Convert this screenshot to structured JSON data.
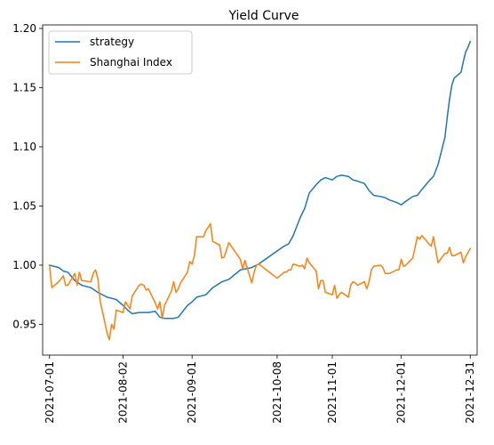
{
  "chart_data": {
    "type": "line",
    "title": "Yield Curve",
    "xlabel": "",
    "ylabel": "",
    "x_range": [
      "2021-06-28",
      "2022-01-03"
    ],
    "ylim": [
      0.924,
      1.203
    ],
    "y_ticks": [
      {
        "value": 0.95,
        "label": "0.95"
      },
      {
        "value": 1.0,
        "label": "1.00"
      },
      {
        "value": 1.05,
        "label": "1.05"
      },
      {
        "value": 1.1,
        "label": "1.10"
      },
      {
        "value": 1.15,
        "label": "1.15"
      },
      {
        "value": 1.2,
        "label": "1.20"
      }
    ],
    "x_ticks": [
      {
        "date": "2021-07-01",
        "label": "2021-07-01"
      },
      {
        "date": "2021-08-02",
        "label": "2021-08-02"
      },
      {
        "date": "2021-09-01",
        "label": "2021-09-01"
      },
      {
        "date": "2021-10-08",
        "label": "2021-10-08"
      },
      {
        "date": "2021-11-01",
        "label": "2021-11-01"
      },
      {
        "date": "2021-12-01",
        "label": "2021-12-01"
      },
      {
        "date": "2021-12-31",
        "label": "2021-12-31"
      }
    ],
    "grid": false,
    "legend_position": "top-left",
    "series": [
      {
        "name": "strategy",
        "color": "#1f77b4",
        "points": [
          [
            "2021-07-01",
            1.0
          ],
          [
            "2021-07-05",
            0.998
          ],
          [
            "2021-07-07",
            0.995
          ],
          [
            "2021-07-09",
            0.994
          ],
          [
            "2021-07-12",
            0.987
          ],
          [
            "2021-07-15",
            0.983
          ],
          [
            "2021-07-19",
            0.981
          ],
          [
            "2021-07-22",
            0.977
          ],
          [
            "2021-07-26",
            0.973
          ],
          [
            "2021-07-30",
            0.971
          ],
          [
            "2021-08-02",
            0.966
          ],
          [
            "2021-08-04",
            0.962
          ],
          [
            "2021-08-06",
            0.959
          ],
          [
            "2021-08-09",
            0.96
          ],
          [
            "2021-08-13",
            0.96
          ],
          [
            "2021-08-16",
            0.961
          ],
          [
            "2021-08-18",
            0.956
          ],
          [
            "2021-08-20",
            0.955
          ],
          [
            "2021-08-24",
            0.955
          ],
          [
            "2021-08-26",
            0.956
          ],
          [
            "2021-08-30",
            0.966
          ],
          [
            "2021-09-01",
            0.969
          ],
          [
            "2021-09-03",
            0.973
          ],
          [
            "2021-09-07",
            0.975
          ],
          [
            "2021-09-10",
            0.981
          ],
          [
            "2021-09-14",
            0.986
          ],
          [
            "2021-09-17",
            0.988
          ],
          [
            "2021-09-22",
            0.996
          ],
          [
            "2021-09-27",
            0.998
          ],
          [
            "2021-09-30",
            1.001
          ],
          [
            "2021-10-08",
            1.012
          ],
          [
            "2021-10-11",
            1.016
          ],
          [
            "2021-10-13",
            1.018
          ],
          [
            "2021-10-15",
            1.025
          ],
          [
            "2021-10-18",
            1.04
          ],
          [
            "2021-10-20",
            1.048
          ],
          [
            "2021-10-22",
            1.061
          ],
          [
            "2021-10-25",
            1.068
          ],
          [
            "2021-10-27",
            1.072
          ],
          [
            "2021-10-29",
            1.074
          ],
          [
            "2021-11-01",
            1.072
          ],
          [
            "2021-11-03",
            1.075
          ],
          [
            "2021-11-05",
            1.076
          ],
          [
            "2021-11-08",
            1.075
          ],
          [
            "2021-11-10",
            1.072
          ],
          [
            "2021-11-12",
            1.071
          ],
          [
            "2021-11-15",
            1.069
          ],
          [
            "2021-11-17",
            1.063
          ],
          [
            "2021-11-19",
            1.059
          ],
          [
            "2021-11-22",
            1.058
          ],
          [
            "2021-11-24",
            1.057
          ],
          [
            "2021-11-26",
            1.055
          ],
          [
            "2021-11-29",
            1.053
          ],
          [
            "2021-12-01",
            1.051
          ],
          [
            "2021-12-03",
            1.054
          ],
          [
            "2021-12-06",
            1.058
          ],
          [
            "2021-12-08",
            1.059
          ],
          [
            "2021-12-10",
            1.064
          ],
          [
            "2021-12-13",
            1.071
          ],
          [
            "2021-12-15",
            1.075
          ],
          [
            "2021-12-17",
            1.085
          ],
          [
            "2021-12-20",
            1.108
          ],
          [
            "2021-12-21",
            1.125
          ],
          [
            "2021-12-22",
            1.14
          ],
          [
            "2021-12-23",
            1.152
          ],
          [
            "2021-12-24",
            1.158
          ],
          [
            "2021-12-27",
            1.163
          ],
          [
            "2021-12-28",
            1.172
          ],
          [
            "2021-12-29",
            1.18
          ],
          [
            "2021-12-30",
            1.184
          ],
          [
            "2021-12-31",
            1.189
          ]
        ]
      },
      {
        "name": "Shanghai Index",
        "color": "#ff7f0e",
        "points": [
          [
            "2021-07-01",
            1.0
          ],
          [
            "2021-07-02",
            0.981
          ],
          [
            "2021-07-05",
            0.986
          ],
          [
            "2021-07-07",
            0.991
          ],
          [
            "2021-07-08",
            0.983
          ],
          [
            "2021-07-09",
            0.983
          ],
          [
            "2021-07-12",
            0.993
          ],
          [
            "2021-07-13",
            0.983
          ],
          [
            "2021-07-14",
            0.994
          ],
          [
            "2021-07-15",
            0.987
          ],
          [
            "2021-07-19",
            0.986
          ],
          [
            "2021-07-20",
            0.993
          ],
          [
            "2021-07-21",
            0.996
          ],
          [
            "2021-07-22",
            0.989
          ],
          [
            "2021-07-23",
            0.97
          ],
          [
            "2021-07-26",
            0.943
          ],
          [
            "2021-07-27",
            0.937
          ],
          [
            "2021-07-28",
            0.95
          ],
          [
            "2021-07-29",
            0.946
          ],
          [
            "2021-07-30",
            0.962
          ],
          [
            "2021-08-02",
            0.96
          ],
          [
            "2021-08-03",
            0.969
          ],
          [
            "2021-08-04",
            0.966
          ],
          [
            "2021-08-05",
            0.963
          ],
          [
            "2021-08-06",
            0.974
          ],
          [
            "2021-08-09",
            0.983
          ],
          [
            "2021-08-10",
            0.984
          ],
          [
            "2021-08-11",
            0.983
          ],
          [
            "2021-08-12",
            0.979
          ],
          [
            "2021-08-13",
            0.98
          ],
          [
            "2021-08-16",
            0.968
          ],
          [
            "2021-08-17",
            0.963
          ],
          [
            "2021-08-18",
            0.969
          ],
          [
            "2021-08-19",
            0.955
          ],
          [
            "2021-08-20",
            0.966
          ],
          [
            "2021-08-23",
            0.978
          ],
          [
            "2021-08-24",
            0.986
          ],
          [
            "2021-08-25",
            0.977
          ],
          [
            "2021-08-26",
            0.98
          ],
          [
            "2021-08-27",
            0.985
          ],
          [
            "2021-08-30",
            0.994
          ],
          [
            "2021-08-31",
            1.003
          ],
          [
            "2021-09-01",
            1.001
          ],
          [
            "2021-09-02",
            1.008
          ],
          [
            "2021-09-03",
            1.024
          ],
          [
            "2021-09-06",
            1.024
          ],
          [
            "2021-09-07",
            1.029
          ],
          [
            "2021-09-08",
            1.032
          ],
          [
            "2021-09-09",
            1.035
          ],
          [
            "2021-09-10",
            1.02
          ],
          [
            "2021-09-13",
            1.017
          ],
          [
            "2021-09-14",
            1.006
          ],
          [
            "2021-09-15",
            1.007
          ],
          [
            "2021-09-16",
            1.013
          ],
          [
            "2021-09-17",
            1.019
          ],
          [
            "2021-09-22",
            1.005
          ],
          [
            "2021-09-23",
            0.997
          ],
          [
            "2021-09-24",
            1.004
          ],
          [
            "2021-09-27",
            0.985
          ],
          [
            "2021-09-28",
            0.994
          ],
          [
            "2021-09-29",
            1.0
          ],
          [
            "2021-09-30",
            1.001
          ],
          [
            "2021-10-08",
            0.989
          ],
          [
            "2021-10-11",
            0.994
          ],
          [
            "2021-10-12",
            0.994
          ],
          [
            "2021-10-13",
            0.996
          ],
          [
            "2021-10-14",
            0.996
          ],
          [
            "2021-10-15",
            1.001
          ],
          [
            "2021-10-18",
            0.999
          ],
          [
            "2021-10-19",
            1.0
          ],
          [
            "2021-10-20",
            0.997
          ],
          [
            "2021-10-21",
            1.006
          ],
          [
            "2021-10-22",
            1.002
          ],
          [
            "2021-10-25",
            0.995
          ],
          [
            "2021-10-26",
            0.98
          ],
          [
            "2021-10-27",
            0.987
          ],
          [
            "2021-10-28",
            0.987
          ],
          [
            "2021-10-29",
            0.977
          ],
          [
            "2021-11-01",
            0.975
          ],
          [
            "2021-11-02",
            0.983
          ],
          [
            "2021-11-03",
            0.972
          ],
          [
            "2021-11-04",
            0.975
          ],
          [
            "2021-11-05",
            0.977
          ],
          [
            "2021-11-08",
            0.973
          ],
          [
            "2021-11-09",
            0.983
          ],
          [
            "2021-11-10",
            0.986
          ],
          [
            "2021-11-11",
            0.985
          ],
          [
            "2021-11-12",
            0.983
          ],
          [
            "2021-11-15",
            0.986
          ],
          [
            "2021-11-16",
            0.98
          ],
          [
            "2021-11-17",
            0.986
          ],
          [
            "2021-11-18",
            0.996
          ],
          [
            "2021-11-19",
            0.999
          ],
          [
            "2021-11-22",
            1.0
          ],
          [
            "2021-11-23",
            0.998
          ],
          [
            "2021-11-24",
            0.993
          ],
          [
            "2021-11-25",
            0.993
          ],
          [
            "2021-11-26",
            0.993
          ],
          [
            "2021-11-29",
            0.996
          ],
          [
            "2021-11-30",
            0.996
          ],
          [
            "2021-12-01",
            1.005
          ],
          [
            "2021-12-02",
            0.999
          ],
          [
            "2021-12-03",
            1.0
          ],
          [
            "2021-12-06",
            1.006
          ],
          [
            "2021-12-07",
            1.015
          ],
          [
            "2021-12-08",
            1.024
          ],
          [
            "2021-12-09",
            1.022
          ],
          [
            "2021-12-10",
            1.025
          ],
          [
            "2021-12-13",
            1.018
          ],
          [
            "2021-12-14",
            1.016
          ],
          [
            "2021-12-15",
            1.024
          ],
          [
            "2021-12-16",
            1.013
          ],
          [
            "2021-12-17",
            1.002
          ],
          [
            "2021-12-20",
            1.01
          ],
          [
            "2021-12-21",
            1.01
          ],
          [
            "2021-12-22",
            1.015
          ],
          [
            "2021-12-23",
            1.008
          ],
          [
            "2021-12-24",
            1.008
          ],
          [
            "2021-12-27",
            1.011
          ],
          [
            "2021-12-28",
            1.002
          ],
          [
            "2021-12-29",
            1.007
          ],
          [
            "2021-12-31",
            1.014
          ]
        ]
      }
    ]
  }
}
